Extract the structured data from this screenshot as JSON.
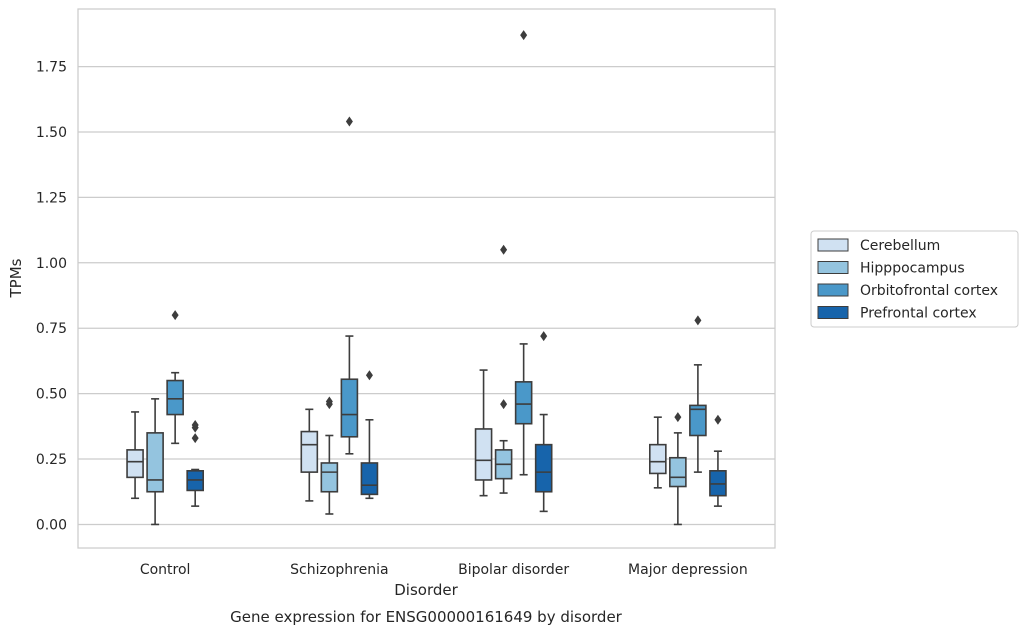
{
  "chart_data": {
    "type": "box",
    "title": "",
    "caption": "Gene expression for ENSG00000161649 by disorder",
    "xlabel": "Disorder",
    "ylabel": "TPMs",
    "ylim": [
      -0.09,
      1.97
    ],
    "yticks": [
      0.0,
      0.25,
      0.5,
      0.75,
      1.0,
      1.25,
      1.5,
      1.75
    ],
    "ytick_labels": [
      "0.00",
      "0.25",
      "0.50",
      "0.75",
      "1.00",
      "1.25",
      "1.50",
      "1.75"
    ],
    "grid": "horizontal",
    "legend_position": "right",
    "categories": [
      "Control",
      "Schizophrenia",
      "Bipolar disorder",
      "Major depression"
    ],
    "series": [
      {
        "name": "Cerebellum",
        "color": "#d0e1f2",
        "boxes": [
          {
            "whislo": 0.1,
            "q1": 0.18,
            "med": 0.24,
            "q3": 0.285,
            "whishi": 0.43,
            "fliers": []
          },
          {
            "whislo": 0.09,
            "q1": 0.2,
            "med": 0.305,
            "q3": 0.355,
            "whishi": 0.44,
            "fliers": []
          },
          {
            "whislo": 0.11,
            "q1": 0.17,
            "med": 0.245,
            "q3": 0.365,
            "whishi": 0.59,
            "fliers": []
          },
          {
            "whislo": 0.14,
            "q1": 0.195,
            "med": 0.24,
            "q3": 0.305,
            "whishi": 0.41,
            "fliers": []
          }
        ]
      },
      {
        "name": "Hipppocampus",
        "color": "#94c4df",
        "boxes": [
          {
            "whislo": 0.0,
            "q1": 0.125,
            "med": 0.17,
            "q3": 0.35,
            "whishi": 0.48,
            "fliers": []
          },
          {
            "whislo": 0.04,
            "q1": 0.125,
            "med": 0.2,
            "q3": 0.235,
            "whishi": 0.34,
            "fliers": [
              0.46,
              0.47
            ]
          },
          {
            "whislo": 0.12,
            "q1": 0.175,
            "med": 0.23,
            "q3": 0.285,
            "whishi": 0.32,
            "fliers": [
              0.46,
              1.05
            ]
          },
          {
            "whislo": 0.0,
            "q1": 0.145,
            "med": 0.18,
            "q3": 0.255,
            "whishi": 0.35,
            "fliers": [
              0.41
            ]
          }
        ]
      },
      {
        "name": "Orbitofrontal cortex",
        "color": "#4a98c9",
        "boxes": [
          {
            "whislo": 0.31,
            "q1": 0.42,
            "med": 0.48,
            "q3": 0.55,
            "whishi": 0.58,
            "fliers": [
              0.8
            ]
          },
          {
            "whislo": 0.27,
            "q1": 0.335,
            "med": 0.42,
            "q3": 0.555,
            "whishi": 0.72,
            "fliers": [
              1.54
            ]
          },
          {
            "whislo": 0.19,
            "q1": 0.385,
            "med": 0.46,
            "q3": 0.545,
            "whishi": 0.69,
            "fliers": [
              1.87
            ]
          },
          {
            "whislo": 0.2,
            "q1": 0.34,
            "med": 0.44,
            "q3": 0.455,
            "whishi": 0.61,
            "fliers": [
              0.78
            ]
          }
        ]
      },
      {
        "name": "Prefrontal cortex",
        "color": "#1764ab",
        "boxes": [
          {
            "whislo": 0.07,
            "q1": 0.13,
            "med": 0.17,
            "q3": 0.205,
            "whishi": 0.21,
            "fliers": [
              0.33,
              0.37,
              0.38
            ]
          },
          {
            "whislo": 0.1,
            "q1": 0.115,
            "med": 0.15,
            "q3": 0.235,
            "whishi": 0.4,
            "fliers": [
              0.57
            ]
          },
          {
            "whislo": 0.05,
            "q1": 0.125,
            "med": 0.2,
            "q3": 0.305,
            "whishi": 0.42,
            "fliers": [
              0.72
            ]
          },
          {
            "whislo": 0.07,
            "q1": 0.11,
            "med": 0.155,
            "q3": 0.205,
            "whishi": 0.28,
            "fliers": [
              0.4
            ]
          }
        ]
      }
    ]
  }
}
